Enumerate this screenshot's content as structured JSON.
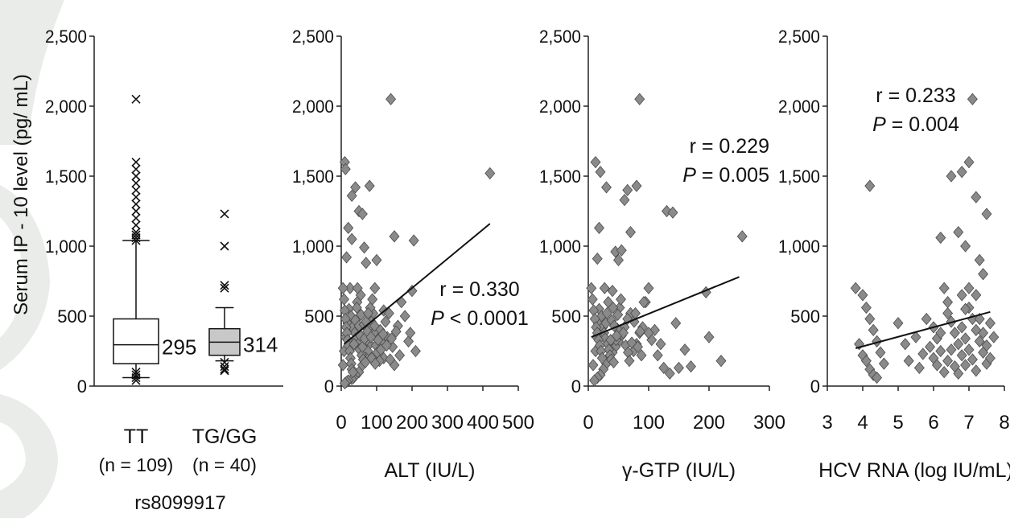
{
  "ylabel": "Serum IP - 10 level (pg/ mL)",
  "colors": {
    "marker": "#8a8a8a",
    "marker_stroke": "#4a4a4a",
    "box_fill_tggg": "#c8c8c8"
  },
  "chart_data": [
    {
      "type": "box",
      "ylim": [
        0,
        2500
      ],
      "yticks": [
        "0",
        "500",
        "1,000",
        "1,500",
        "2,000",
        "2,500"
      ],
      "ytick_values": [
        0,
        500,
        1000,
        1500,
        2000,
        2500
      ],
      "xlabel": "rs8099917",
      "groups": [
        {
          "label": "TT",
          "n_label": "(n = 109)",
          "whisker_low": 60,
          "q1": 160,
          "median": 295,
          "q3": 480,
          "whisker_high": 1040,
          "median_label": "295",
          "outliers": [
            2050,
            1600,
            1550,
            1500,
            1450,
            1400,
            1350,
            1300,
            1250,
            1200,
            1150,
            1100,
            1080,
            1060,
            1040,
            100,
            80,
            60,
            40
          ]
        },
        {
          "label": "TG/GG",
          "n_label": "(n = 40)",
          "whisker_low": 180,
          "q1": 220,
          "median": 314,
          "q3": 410,
          "whisker_high": 560,
          "median_label": "314",
          "outliers": [
            1230,
            1000,
            720,
            700,
            170,
            140,
            120,
            110
          ]
        }
      ]
    },
    {
      "type": "scatter",
      "xlabel": "ALT (IU/L)",
      "xlim": [
        0,
        500
      ],
      "ylim": [
        0,
        2500
      ],
      "xticks": [
        "0",
        "100",
        "200",
        "300",
        "400",
        "500"
      ],
      "xtick_values": [
        0,
        100,
        200,
        300,
        400,
        500
      ],
      "yticks": [
        "0",
        "500",
        "1,000",
        "1,500",
        "2,000",
        "2,500"
      ],
      "ytick_values": [
        0,
        500,
        1000,
        1500,
        2000,
        2500
      ],
      "r_text": "r = 0.330",
      "p_label": "P",
      "p_text": " < 0.0001",
      "fit": [
        [
          8,
          300
        ],
        [
          420,
          1160
        ]
      ],
      "points": [
        [
          10,
          1600
        ],
        [
          12,
          1550
        ],
        [
          140,
          2050
        ],
        [
          420,
          1520
        ],
        [
          15,
          920
        ],
        [
          20,
          1130
        ],
        [
          30,
          1360
        ],
        [
          40,
          1420
        ],
        [
          50,
          1250
        ],
        [
          60,
          1230
        ],
        [
          65,
          990
        ],
        [
          70,
          880
        ],
        [
          80,
          1430
        ],
        [
          30,
          1050
        ],
        [
          25,
          700
        ],
        [
          45,
          600
        ],
        [
          55,
          650
        ],
        [
          95,
          700
        ],
        [
          120,
          540
        ],
        [
          200,
          680
        ],
        [
          150,
          1070
        ],
        [
          205,
          1040
        ],
        [
          100,
          900
        ],
        [
          110,
          400
        ],
        [
          130,
          350
        ],
        [
          160,
          430
        ],
        [
          180,
          500
        ],
        [
          190,
          320
        ],
        [
          195,
          380
        ],
        [
          210,
          250
        ],
        [
          150,
          150
        ],
        [
          120,
          200
        ],
        [
          90,
          520
        ],
        [
          85,
          460
        ],
        [
          80,
          300
        ],
        [
          75,
          250
        ],
        [
          70,
          200
        ],
        [
          60,
          150
        ],
        [
          50,
          100
        ],
        [
          40,
          80
        ],
        [
          35,
          60
        ],
        [
          30,
          50
        ],
        [
          20,
          40
        ],
        [
          15,
          30
        ],
        [
          10,
          20
        ],
        [
          5,
          150
        ],
        [
          8,
          250
        ],
        [
          12,
          350
        ],
        [
          18,
          450
        ],
        [
          22,
          550
        ],
        [
          28,
          500
        ],
        [
          32,
          420
        ],
        [
          38,
          380
        ],
        [
          42,
          340
        ],
        [
          48,
          300
        ],
        [
          52,
          260
        ],
        [
          58,
          220
        ],
        [
          62,
          190
        ],
        [
          68,
          170
        ],
        [
          72,
          330
        ],
        [
          78,
          410
        ],
        [
          82,
          560
        ],
        [
          88,
          620
        ],
        [
          92,
          380
        ],
        [
          98,
          290
        ],
        [
          102,
          240
        ],
        [
          108,
          180
        ],
        [
          115,
          310
        ],
        [
          125,
          460
        ],
        [
          135,
          520
        ],
        [
          145,
          280
        ],
        [
          155,
          390
        ],
        [
          165,
          220
        ],
        [
          170,
          600
        ],
        [
          5,
          700
        ],
        [
          8,
          620
        ],
        [
          10,
          540
        ],
        [
          12,
          480
        ],
        [
          14,
          420
        ],
        [
          16,
          380
        ],
        [
          18,
          330
        ],
        [
          20,
          290
        ],
        [
          24,
          250
        ],
        [
          26,
          200
        ],
        [
          28,
          160
        ],
        [
          30,
          120
        ],
        [
          33,
          100
        ],
        [
          36,
          300
        ],
        [
          40,
          470
        ],
        [
          44,
          560
        ],
        [
          46,
          700
        ],
        [
          50,
          430
        ],
        [
          54,
          360
        ],
        [
          56,
          510
        ],
        [
          60,
          280
        ],
        [
          64,
          440
        ],
        [
          66,
          340
        ],
        [
          70,
          460
        ],
        [
          74,
          390
        ],
        [
          76,
          520
        ],
        [
          84,
          350
        ],
        [
          86,
          200
        ],
        [
          94,
          430
        ],
        [
          96,
          160
        ],
        [
          104,
          330
        ],
        [
          112,
          260
        ],
        [
          118,
          370
        ],
        [
          128,
          290
        ],
        [
          138,
          190
        ],
        [
          142,
          340
        ]
      ]
    },
    {
      "type": "scatter",
      "xlabel": "γ-GTP (IU/L)",
      "xlim": [
        0,
        300
      ],
      "ylim": [
        0,
        2500
      ],
      "xticks": [
        "0",
        "100",
        "200",
        "300"
      ],
      "xtick_values": [
        0,
        100,
        200,
        300
      ],
      "yticks": [
        "0",
        "500",
        "1,000",
        "1,500",
        "2,000",
        "2,500"
      ],
      "ytick_values": [
        0,
        500,
        1000,
        1500,
        2000,
        2500
      ],
      "r_text": "r = 0.229",
      "p_label": "P",
      "p_text": " = 0.005",
      "fit": [
        [
          5,
          350
        ],
        [
          250,
          780
        ]
      ],
      "points": [
        [
          12,
          1600
        ],
        [
          20,
          1530
        ],
        [
          30,
          1420
        ],
        [
          85,
          2050
        ],
        [
          18,
          1130
        ],
        [
          15,
          910
        ],
        [
          45,
          960
        ],
        [
          55,
          970
        ],
        [
          60,
          1330
        ],
        [
          65,
          1400
        ],
        [
          70,
          1100
        ],
        [
          80,
          1430
        ],
        [
          50,
          900
        ],
        [
          100,
          700
        ],
        [
          40,
          680
        ],
        [
          130,
          1250
        ],
        [
          140,
          1240
        ],
        [
          255,
          1070
        ],
        [
          195,
          670
        ],
        [
          145,
          450
        ],
        [
          160,
          260
        ],
        [
          170,
          140
        ],
        [
          200,
          350
        ],
        [
          220,
          180
        ],
        [
          120,
          300
        ],
        [
          115,
          220
        ],
        [
          110,
          400
        ],
        [
          105,
          330
        ],
        [
          100,
          380
        ],
        [
          95,
          600
        ],
        [
          90,
          420
        ],
        [
          85,
          380
        ],
        [
          80,
          300
        ],
        [
          75,
          250
        ],
        [
          70,
          520
        ],
        [
          65,
          480
        ],
        [
          60,
          420
        ],
        [
          55,
          360
        ],
        [
          50,
          320
        ],
        [
          45,
          280
        ],
        [
          40,
          240
        ],
        [
          35,
          200
        ],
        [
          30,
          160
        ],
        [
          25,
          120
        ],
        [
          20,
          80
        ],
        [
          15,
          60
        ],
        [
          10,
          40
        ],
        [
          8,
          150
        ],
        [
          12,
          250
        ],
        [
          14,
          350
        ],
        [
          16,
          450
        ],
        [
          18,
          550
        ],
        [
          22,
          500
        ],
        [
          24,
          420
        ],
        [
          26,
          380
        ],
        [
          28,
          340
        ],
        [
          32,
          300
        ],
        [
          34,
          260
        ],
        [
          36,
          220
        ],
        [
          38,
          190
        ],
        [
          42,
          170
        ],
        [
          46,
          330
        ],
        [
          48,
          410
        ],
        [
          52,
          560
        ],
        [
          54,
          620
        ],
        [
          58,
          380
        ],
        [
          62,
          290
        ],
        [
          66,
          240
        ],
        [
          68,
          180
        ],
        [
          72,
          310
        ],
        [
          76,
          460
        ],
        [
          78,
          520
        ],
        [
          82,
          280
        ],
        [
          86,
          390
        ],
        [
          88,
          220
        ],
        [
          92,
          600
        ],
        [
          5,
          700
        ],
        [
          7,
          620
        ],
        [
          9,
          540
        ],
        [
          11,
          480
        ],
        [
          13,
          420
        ],
        [
          15,
          380
        ],
        [
          17,
          330
        ],
        [
          19,
          290
        ],
        [
          21,
          250
        ],
        [
          23,
          200
        ],
        [
          27,
          700
        ],
        [
          29,
          450
        ],
        [
          31,
          520
        ],
        [
          33,
          600
        ],
        [
          37,
          330
        ],
        [
          39,
          470
        ],
        [
          41,
          560
        ],
        [
          43,
          430
        ],
        [
          47,
          360
        ],
        [
          49,
          510
        ],
        [
          125,
          130
        ],
        [
          135,
          90
        ],
        [
          150,
          130
        ]
      ]
    },
    {
      "type": "scatter",
      "xlabel": "HCV RNA (log IU/mL)",
      "xlim": [
        3,
        8
      ],
      "ylim": [
        0,
        2500
      ],
      "xticks": [
        "3",
        "4",
        "5",
        "6",
        "7",
        "8"
      ],
      "xtick_values": [
        3,
        4,
        5,
        6,
        7,
        8
      ],
      "yticks": [
        "0",
        "500",
        "1,000",
        "1,500",
        "2,000",
        "2,500"
      ],
      "ytick_values": [
        0,
        500,
        1000,
        1500,
        2000,
        2500
      ],
      "r_text": "r = 0.233",
      "p_label": "P",
      "p_text": " = 0.004",
      "fit": [
        [
          3.8,
          270
        ],
        [
          7.6,
          530
        ]
      ],
      "points": [
        [
          4.2,
          1430
        ],
        [
          7.1,
          2050
        ],
        [
          6.5,
          1500
        ],
        [
          7.0,
          1600
        ],
        [
          6.8,
          1530
        ],
        [
          7.5,
          1230
        ],
        [
          7.2,
          1350
        ],
        [
          6.2,
          1060
        ],
        [
          6.7,
          1100
        ],
        [
          6.9,
          1000
        ],
        [
          7.3,
          900
        ],
        [
          6.3,
          700
        ],
        [
          6.8,
          650
        ],
        [
          7.4,
          800
        ],
        [
          3.8,
          700
        ],
        [
          4.0,
          650
        ],
        [
          4.1,
          560
        ],
        [
          4.2,
          480
        ],
        [
          4.3,
          400
        ],
        [
          4.4,
          320
        ],
        [
          4.5,
          240
        ],
        [
          4.6,
          160
        ],
        [
          5.0,
          450
        ],
        [
          5.2,
          300
        ],
        [
          5.5,
          350
        ],
        [
          5.7,
          230
        ],
        [
          5.8,
          480
        ],
        [
          6.0,
          420
        ],
        [
          6.1,
          340
        ],
        [
          6.2,
          250
        ],
        [
          6.4,
          520
        ],
        [
          6.5,
          460
        ],
        [
          6.6,
          380
        ],
        [
          6.7,
          300
        ],
        [
          6.8,
          220
        ],
        [
          6.9,
          150
        ],
        [
          7.0,
          560
        ],
        [
          7.1,
          480
        ],
        [
          7.2,
          400
        ],
        [
          7.3,
          320
        ],
        [
          7.4,
          240
        ],
        [
          7.5,
          160
        ],
        [
          7.6,
          450
        ],
        [
          7.7,
          350
        ],
        [
          3.9,
          300
        ],
        [
          4.0,
          220
        ],
        [
          4.1,
          180
        ],
        [
          4.2,
          120
        ],
        [
          4.3,
          80
        ],
        [
          4.4,
          60
        ],
        [
          5.9,
          280
        ],
        [
          6.0,
          200
        ],
        [
          6.1,
          150
        ],
        [
          6.3,
          100
        ],
        [
          6.4,
          180
        ],
        [
          6.5,
          260
        ],
        [
          6.6,
          140
        ],
        [
          6.7,
          90
        ],
        [
          6.9,
          340
        ],
        [
          7.0,
          260
        ],
        [
          7.1,
          190
        ],
        [
          7.2,
          110
        ],
        [
          7.3,
          480
        ],
        [
          7.4,
          380
        ],
        [
          7.5,
          290
        ],
        [
          7.6,
          200
        ],
        [
          5.3,
          180
        ],
        [
          5.6,
          130
        ],
        [
          6.2,
          380
        ],
        [
          6.8,
          420
        ],
        [
          7.0,
          700
        ],
        [
          7.2,
          650
        ],
        [
          6.4,
          600
        ],
        [
          6.9,
          550
        ]
      ]
    }
  ]
}
